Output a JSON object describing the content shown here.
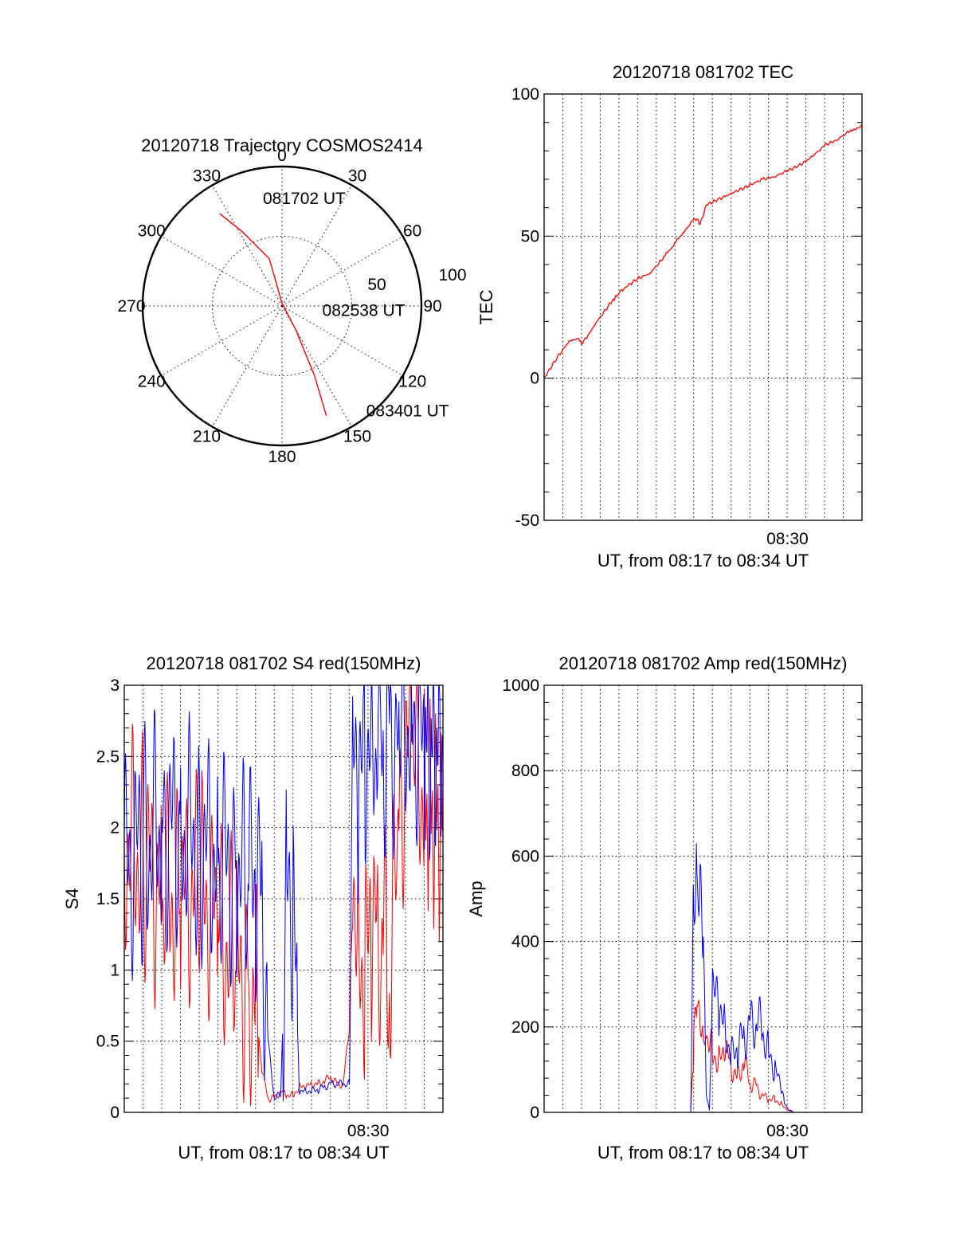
{
  "colors": {
    "red": "#ff0000",
    "blue": "#0000ff",
    "axis": "#000000"
  },
  "chart_data": [
    {
      "type": "polar",
      "title": "20120718 Trajectory COSMOS2414",
      "angle_labels": [
        "0",
        "30",
        "60",
        "90",
        "120",
        "150",
        "180",
        "210",
        "240",
        "270",
        "300",
        "330"
      ],
      "radius_labels": [
        "50",
        "100"
      ],
      "rmax": 100,
      "grid": true,
      "series": [
        {
          "color": "#ff0000",
          "points": [
            [
              -34,
              80
            ],
            [
              -28,
              60
            ],
            [
              -15,
              35
            ],
            [
              0,
              2
            ],
            [
              150,
              20
            ],
            [
              155,
              55
            ],
            [
              158,
              85
            ]
          ]
        }
      ],
      "annotations": [
        {
          "text": "081702 UT",
          "az": -10,
          "r": 79
        },
        {
          "text": "082538 UT",
          "az": 95,
          "r": 29
        },
        {
          "text": "083401 UT",
          "az": 141,
          "r": 96
        }
      ]
    },
    {
      "type": "line",
      "title": "20120718 081702 TEC",
      "ylabel": "TEC",
      "xlabel": "UT, from 08:17 to 08:34 UT",
      "xlim": [
        0,
        1019
      ],
      "ylim": [
        -50,
        100
      ],
      "yticks": [
        "-50",
        "0",
        "50",
        "100"
      ],
      "xtick_labels": [
        {
          "text": "08:30",
          "x": 780
        }
      ],
      "grid": true,
      "series": [
        {
          "color": "#ff0000",
          "x": [
            0,
            40,
            80,
            110,
            120,
            140,
            170,
            210,
            240,
            260,
            300,
            340,
            380,
            430,
            460,
            480,
            490,
            500,
            520,
            560,
            600,
            640,
            700,
            740,
            780,
            820,
            860,
            880,
            900,
            940,
            980,
            1019
          ],
          "y": [
            0,
            7,
            13,
            14,
            12,
            15,
            20,
            26,
            30,
            32,
            35,
            37,
            42,
            49,
            53,
            56,
            56,
            54,
            61,
            63,
            65,
            67,
            70,
            71,
            73,
            75,
            78,
            80,
            82,
            84,
            87,
            89
          ]
        }
      ]
    },
    {
      "type": "line",
      "title": "20120718 081702 S4 red(150MHz)",
      "ylabel": "S4",
      "xlabel": "UT, from 08:17 to 08:34 UT",
      "xlim": [
        0,
        1019
      ],
      "ylim": [
        0,
        3
      ],
      "yticks": [
        "0",
        "0.5",
        "1",
        "1.5",
        "2",
        "2.5",
        "3"
      ],
      "xtick_labels": [
        {
          "text": "08:30",
          "x": 780
        }
      ],
      "grid": true,
      "series": [
        {
          "color": "#ff0000",
          "x": [
            0,
            60,
            120,
            180,
            240,
            300,
            360,
            400,
            420,
            440,
            460,
            480,
            500,
            520,
            540,
            560,
            580,
            600,
            620,
            640,
            660,
            680,
            700,
            720,
            730,
            750,
            770,
            790,
            810,
            830,
            850,
            880,
            920,
            960,
            1019
          ],
          "y": [
            1.9,
            1.8,
            1.5,
            1.5,
            1.6,
            1.3,
            1.0,
            0.9,
            0.8,
            0.3,
            0.1,
            0.1,
            0.15,
            0.12,
            0.12,
            0.18,
            0.18,
            0.2,
            0.2,
            0.22,
            0.25,
            0.2,
            0.2,
            0.6,
            1.8,
            1.1,
            0.95,
            1.4,
            1.3,
            1.2,
            0.9,
            2.2,
            2.6,
            2.2,
            2.0
          ]
        },
        {
          "color": "#0000ff",
          "x": [
            0,
            60,
            120,
            180,
            240,
            300,
            360,
            400,
            420,
            440,
            460,
            480,
            500,
            520,
            540,
            560,
            580,
            600,
            620,
            640,
            660,
            680,
            700,
            720,
            730,
            750,
            770,
            790,
            810,
            830,
            850,
            880,
            920,
            960,
            1019
          ],
          "y": [
            1.7,
            1.9,
            2.0,
            2.0,
            1.9,
            1.8,
            1.7,
            1.6,
            1.6,
            1.5,
            0.5,
            0.1,
            0.12,
            1.6,
            1.5,
            0.15,
            0.15,
            0.15,
            0.16,
            0.18,
            0.2,
            0.2,
            0.2,
            0.2,
            2.5,
            2.3,
            2.5,
            2.7,
            2.5,
            2.6,
            2.7,
            2.6,
            2.8,
            2.5,
            2.6
          ]
        }
      ]
    },
    {
      "type": "line",
      "title": "20120718 081702 Amp red(150MHz)",
      "ylabel": "Amp",
      "xlabel": "UT, from 08:17 to 08:34 UT",
      "xlim": [
        0,
        1019
      ],
      "ylim": [
        0,
        1000
      ],
      "yticks": [
        "0",
        "200",
        "400",
        "600",
        "800",
        "1000"
      ],
      "xtick_labels": [
        {
          "text": "08:30",
          "x": 780
        }
      ],
      "grid": true,
      "series": [
        {
          "color": "#ff0000",
          "x": [
            0,
            470,
            480,
            490,
            500,
            510,
            520,
            540,
            560,
            580,
            600,
            620,
            640,
            660,
            680,
            700,
            720,
            740,
            760,
            770,
            780,
            790,
            800,
            1019
          ],
          "y": [
            0,
            0,
            180,
            250,
            190,
            160,
            180,
            140,
            120,
            150,
            110,
            80,
            120,
            70,
            60,
            40,
            30,
            30,
            20,
            10,
            5,
            3,
            0,
            0
          ]
        },
        {
          "color": "#0000ff",
          "x": [
            0,
            470,
            480,
            490,
            500,
            510,
            520,
            530,
            540,
            560,
            580,
            600,
            620,
            640,
            660,
            680,
            700,
            720,
            740,
            760,
            770,
            780,
            790,
            800,
            1019
          ],
          "y": [
            0,
            0,
            500,
            560,
            600,
            450,
            40,
            5,
            280,
            250,
            200,
            130,
            150,
            180,
            200,
            220,
            190,
            140,
            100,
            60,
            30,
            10,
            5,
            0,
            0
          ]
        }
      ]
    }
  ]
}
